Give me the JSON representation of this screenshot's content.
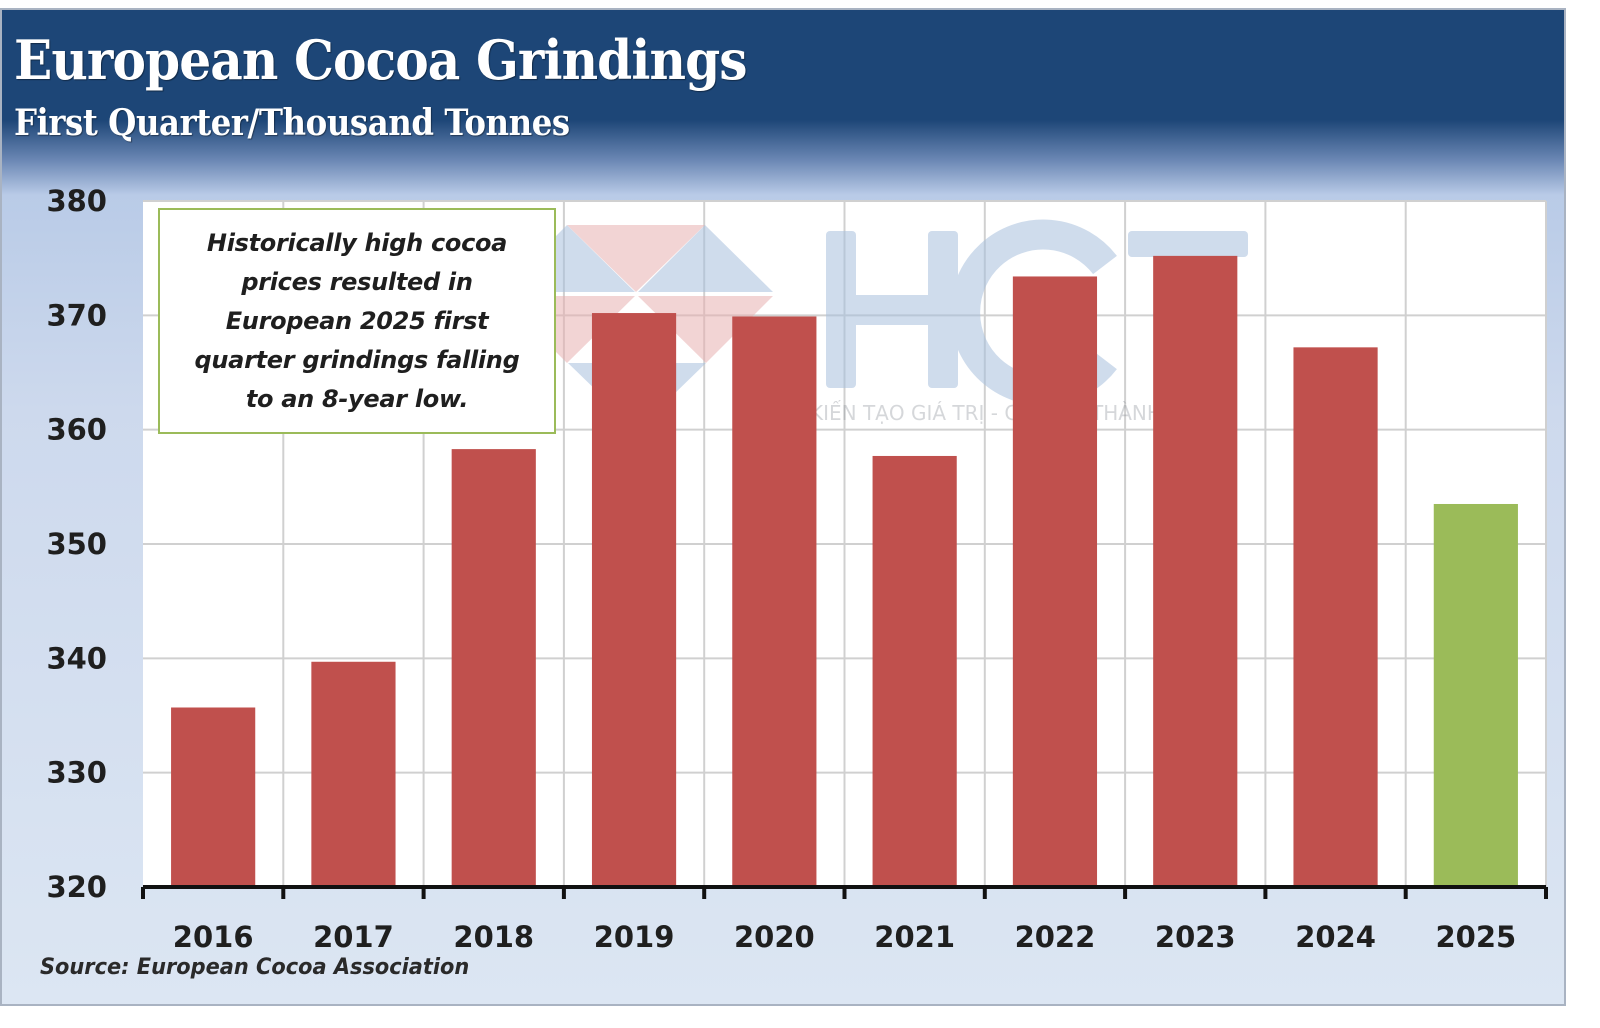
{
  "header": {
    "title": "European Cocoa Grindings",
    "subtitle": "First Quarter/Thousand Tonnes"
  },
  "annotation": {
    "lines": [
      "Historically high cocoa",
      "prices resulted in",
      "European 2025 first",
      "quarter grindings falling",
      "to an 8-year low."
    ]
  },
  "source": "Source: European Cocoa Association",
  "watermark": {
    "brand": "HCT",
    "tagline": "KIẾN TẠO GIÁ TRỊ - CHIA SẺ THÀNH CÔNG"
  },
  "colors": {
    "bar_default": "#c0504d",
    "bar_highlight": "#9bbb59",
    "header_bg": "#1d4677",
    "annotation_border": "#9bbb59",
    "grid": "#d0d0d0"
  },
  "chart_data": {
    "type": "bar",
    "title": "European Cocoa Grindings",
    "subtitle": "First Quarter/Thousand Tonnes",
    "xlabel": "",
    "ylabel": "Thousand Tonnes",
    "categories": [
      "2016",
      "2017",
      "2018",
      "2019",
      "2020",
      "2021",
      "2022",
      "2023",
      "2024",
      "2025"
    ],
    "values": [
      335.7,
      339.7,
      358.3,
      370.2,
      369.9,
      357.7,
      373.4,
      375.2,
      367.2,
      353.5
    ],
    "highlight": [
      "2025"
    ],
    "ylim": [
      320,
      380
    ],
    "yticks": [
      320,
      330,
      340,
      350,
      360,
      370,
      380
    ],
    "grid": true,
    "legend": "none"
  }
}
